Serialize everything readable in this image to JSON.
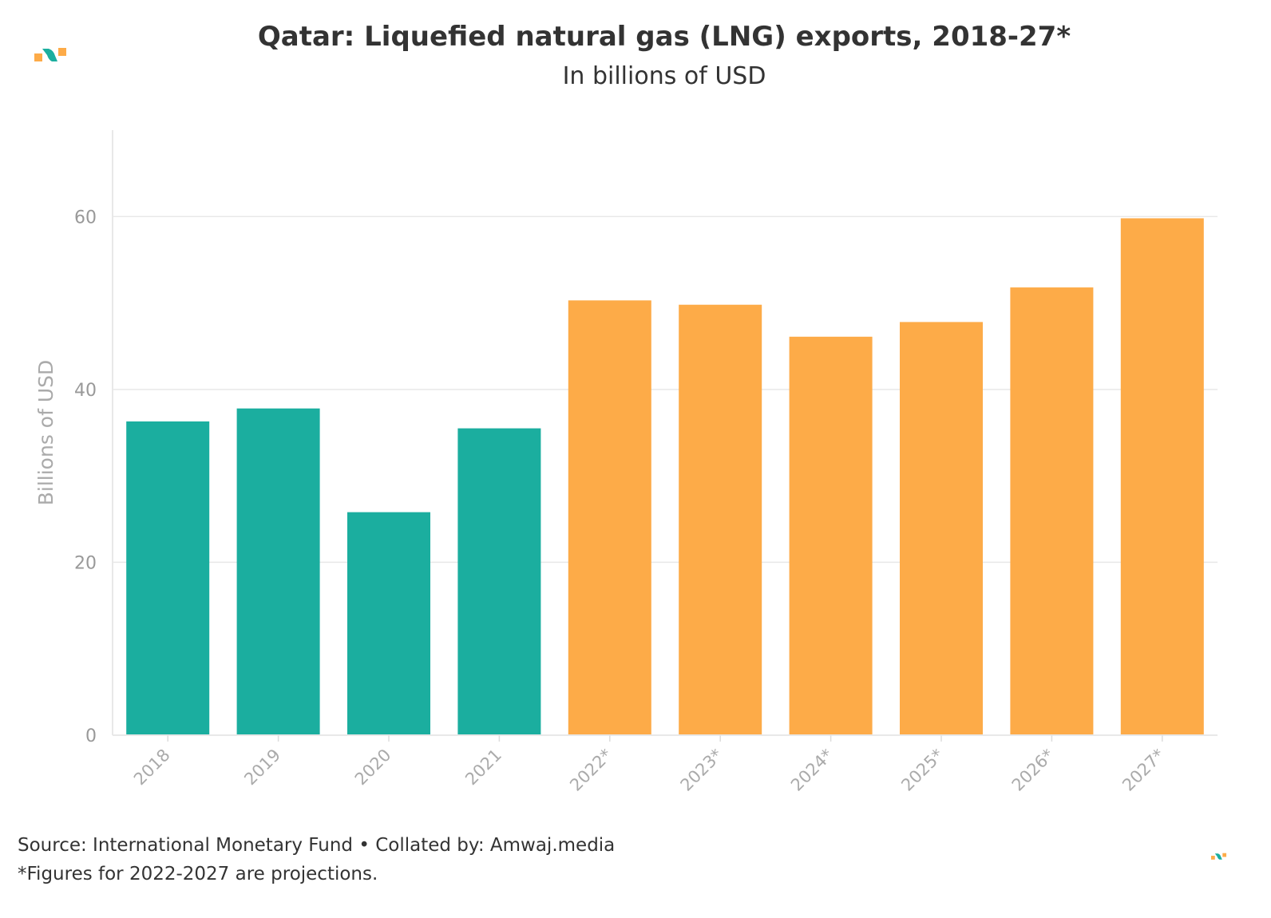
{
  "chart_data": {
    "type": "bar",
    "title": "Qatar: Liquefied natural gas (LNG) exports, 2018-27*",
    "subtitle": "In billions of USD",
    "xlabel": "",
    "ylabel": "Billions of USD",
    "ylim": [
      0,
      70
    ],
    "yticks": [
      0,
      20,
      40,
      60
    ],
    "grid": true,
    "categories": [
      "2018",
      "2019",
      "2020",
      "2021",
      "2022*",
      "2023*",
      "2024*",
      "2025*",
      "2026*",
      "2027*"
    ],
    "values": [
      36.3,
      37.8,
      25.8,
      35.5,
      50.3,
      49.8,
      46.1,
      47.8,
      51.8,
      59.8
    ],
    "bar_colors": [
      "#1bae9f",
      "#1bae9f",
      "#1bae9f",
      "#1bae9f",
      "#fdab48",
      "#fdab48",
      "#fdab48",
      "#fdab48",
      "#fdab48",
      "#fdab48"
    ]
  },
  "footer": {
    "source": "Source: International Monetary Fund • Collated by: Amwaj.media",
    "note": "*Figures for 2022-2027 are projections."
  },
  "colors": {
    "actual": "#1bae9f",
    "projection": "#fdab48"
  }
}
